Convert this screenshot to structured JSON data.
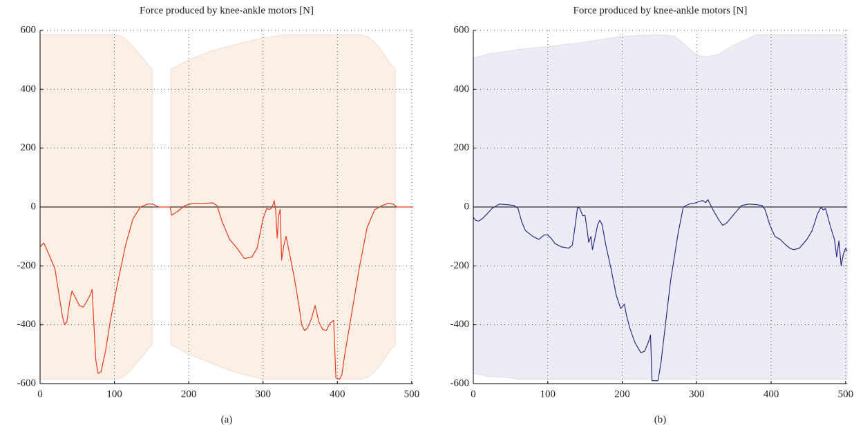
{
  "charts": [
    {
      "chart_data": {
        "type": "line",
        "title": "Force produced by knee-ankle motors [N]",
        "caption": "(a)",
        "xlim": [
          0,
          502
        ],
        "ylim": [
          -600,
          600
        ],
        "xticks": [
          0,
          100,
          200,
          300,
          400,
          500
        ],
        "yticks": [
          -600,
          -400,
          -200,
          0,
          200,
          400,
          600
        ],
        "grid": true,
        "band": {
          "color": "#fcefe5",
          "edge": "#eeddd5",
          "x": [
            0,
            100,
            110,
            120,
            130,
            140,
            150,
            151,
            160,
            176,
            177,
            200,
            230,
            260,
            300,
            330,
            430,
            440,
            450,
            460,
            470,
            478
          ],
          "upper": [
            585,
            585,
            580,
            560,
            530,
            500,
            470,
            465,
            null,
            465,
            468,
            500,
            530,
            550,
            575,
            585,
            585,
            580,
            560,
            530,
            490,
            468
          ],
          "lower": [
            -585,
            -585,
            -580,
            -560,
            -530,
            -500,
            -470,
            -465,
            null,
            -465,
            -468,
            -500,
            -530,
            -560,
            -585,
            -585,
            -585,
            -580,
            -560,
            -530,
            -490,
            -468
          ]
        },
        "series": [
          {
            "color": "#e8391d",
            "x": [
              0,
              5,
              10,
              15,
              20,
              25,
              30,
              33,
              36,
              40,
              43,
              48,
              53,
              58,
              63,
              68,
              70,
              72,
              75,
              78,
              82,
              88,
              95,
              105,
              115,
              125,
              135,
              145,
              152,
              153,
              160,
              175,
              177,
              185,
              195,
              205,
              220,
              232,
              238,
              245,
              255,
              265,
              275,
              285,
              292,
              300,
              305,
              308,
              311,
              313,
              315,
              317,
              319,
              321,
              323,
              325,
              328,
              331,
              335,
              342,
              348,
              352,
              356,
              360,
              365,
              370,
              375,
              380,
              385,
              390,
              395,
              398,
              403,
              406,
              410,
              420,
              430,
              440,
              450,
              460,
              468,
              475,
              480,
              502
            ],
            "values": [
              -135,
              -122,
              -150,
              -180,
              -210,
              -290,
              -370,
              -400,
              -390,
              -320,
              -285,
              -310,
              -335,
              -340,
              -320,
              -295,
              -280,
              -380,
              -520,
              -565,
              -560,
              -490,
              -380,
              -250,
              -130,
              -40,
              0,
              10,
              10,
              8,
              0,
              0,
              -28,
              -15,
              5,
              12,
              12,
              14,
              5,
              -50,
              -110,
              -140,
              -175,
              -170,
              -140,
              -40,
              -5,
              -8,
              -5,
              5,
              22,
              -10,
              -105,
              -30,
              -8,
              -180,
              -130,
              -100,
              -150,
              -240,
              -330,
              -400,
              -420,
              -410,
              -380,
              -335,
              -390,
              -415,
              -420,
              -395,
              -385,
              -580,
              -585,
              -570,
              -500,
              -350,
              -200,
              -70,
              -10,
              5,
              12,
              10,
              0,
              0
            ]
          }
        ]
      }
    },
    {
      "chart_data": {
        "type": "line",
        "title": "Force produced by knee-ankle motors [N]",
        "caption": "(b)",
        "xlim": [
          0,
          502
        ],
        "ylim": [
          -600,
          600
        ],
        "xticks": [
          0,
          100,
          200,
          300,
          400,
          500
        ],
        "yticks": [
          -600,
          -400,
          -200,
          0,
          200,
          400,
          600
        ],
        "grid": true,
        "band": {
          "color": "#ecedf4",
          "edge": "#dcdde6",
          "x": [
            0,
            20,
            50,
            60,
            100,
            150,
            200,
            250,
            270,
            285,
            300,
            315,
            330,
            350,
            380,
            502
          ],
          "upper": [
            505,
            520,
            530,
            535,
            545,
            560,
            580,
            585,
            580,
            550,
            515,
            510,
            520,
            550,
            585,
            585
          ],
          "lower": [
            -565,
            -575,
            -580,
            -585,
            -585,
            -585,
            -585,
            -585,
            -585,
            -585,
            -585,
            -585,
            -585,
            -585,
            -585,
            -585
          ]
        },
        "series": [
          {
            "color": "#2b2a86",
            "x": [
              0,
              3,
              7,
              12,
              18,
              25,
              35,
              45,
              55,
              60,
              65,
              70,
              80,
              88,
              95,
              100,
              105,
              110,
              118,
              128,
              133,
              137,
              140,
              143,
              147,
              150,
              153,
              155,
              158,
              160,
              163,
              167,
              170,
              173,
              178,
              185,
              192,
              198,
              203,
              205,
              210,
              217,
              225,
              230,
              235,
              238,
              240,
              248,
              252,
              258,
              265,
              275,
              282,
              290,
              297,
              303,
              308,
              312,
              315,
              318,
              322,
              330,
              335,
              340,
              350,
              360,
              370,
              380,
              388,
              392,
              398,
              405,
              412,
              418,
              425,
              430,
              438,
              448,
              455,
              462,
              467,
              470,
              473,
              480,
              485,
              488,
              491,
              494,
              497,
              500,
              502
            ],
            "values": [
              -35,
              -45,
              -48,
              -40,
              -25,
              -5,
              10,
              8,
              5,
              -5,
              -50,
              -80,
              -100,
              -110,
              -95,
              -95,
              -108,
              -125,
              -135,
              -140,
              -130,
              -60,
              0,
              -5,
              -30,
              -28,
              -80,
              -120,
              -100,
              -145,
              -110,
              -60,
              -45,
              -60,
              -130,
              -210,
              -300,
              -345,
              -330,
              -360,
              -410,
              -460,
              -495,
              -490,
              -460,
              -435,
              -590,
              -590,
              -530,
              -400,
              -250,
              -90,
              0,
              10,
              13,
              18,
              22,
              15,
              25,
              10,
              -10,
              -45,
              -62,
              -55,
              -25,
              5,
              10,
              8,
              5,
              -10,
              -60,
              -100,
              -110,
              -125,
              -140,
              -145,
              -140,
              -110,
              -80,
              -25,
              0,
              -10,
              -5,
              -70,
              -110,
              -170,
              -115,
              -200,
              -160,
              -140,
              -150
            ]
          }
        ]
      }
    }
  ]
}
